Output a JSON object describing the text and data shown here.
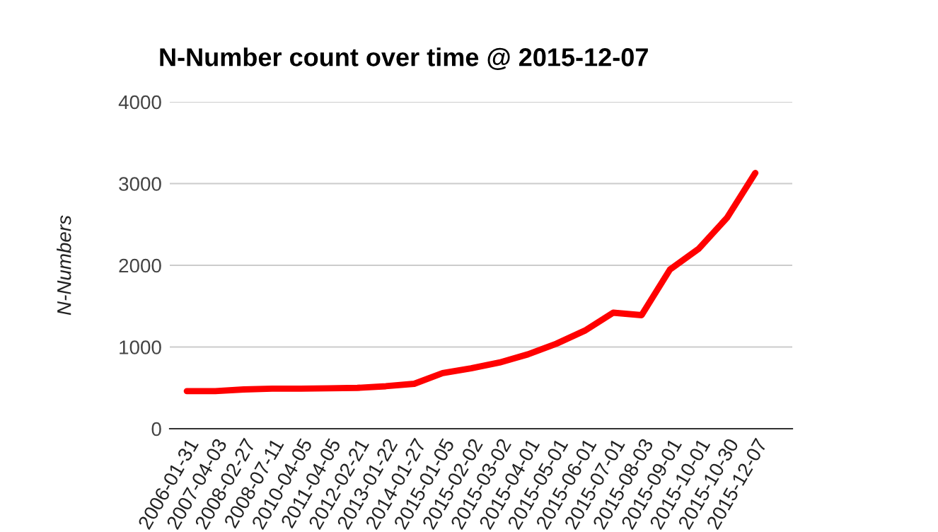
{
  "chart_data": {
    "type": "line",
    "title": "N-Number count over time @ 2015-12-07",
    "ylabel": "N-Numbers",
    "categories": [
      "2006-01-31",
      "2007-04-03",
      "2008-02-27",
      "2008-07-11",
      "2010-04-05",
      "2011-04-05",
      "2012-02-21",
      "2013-01-22",
      "2014-01-27",
      "2015-01-05",
      "2015-02-02",
      "2015-03-02",
      "2015-04-01",
      "2015-05-01",
      "2015-06-01",
      "2015-07-01",
      "2015-08-03",
      "2015-09-01",
      "2015-10-01",
      "2015-10-30",
      "2015-12-07"
    ],
    "series": [
      {
        "color": "#ff0000",
        "values": [
          460,
          460,
          480,
          490,
          490,
          495,
          500,
          520,
          550,
          680,
          740,
          810,
          910,
          1040,
          1200,
          1420,
          1390,
          1950,
          2200,
          2580,
          3130
        ]
      }
    ],
    "ylim": [
      0,
      4000
    ],
    "yticks": [
      0,
      1000,
      2000,
      3000,
      4000
    ],
    "grid": "y",
    "marker": "none",
    "line_style": "solid"
  }
}
